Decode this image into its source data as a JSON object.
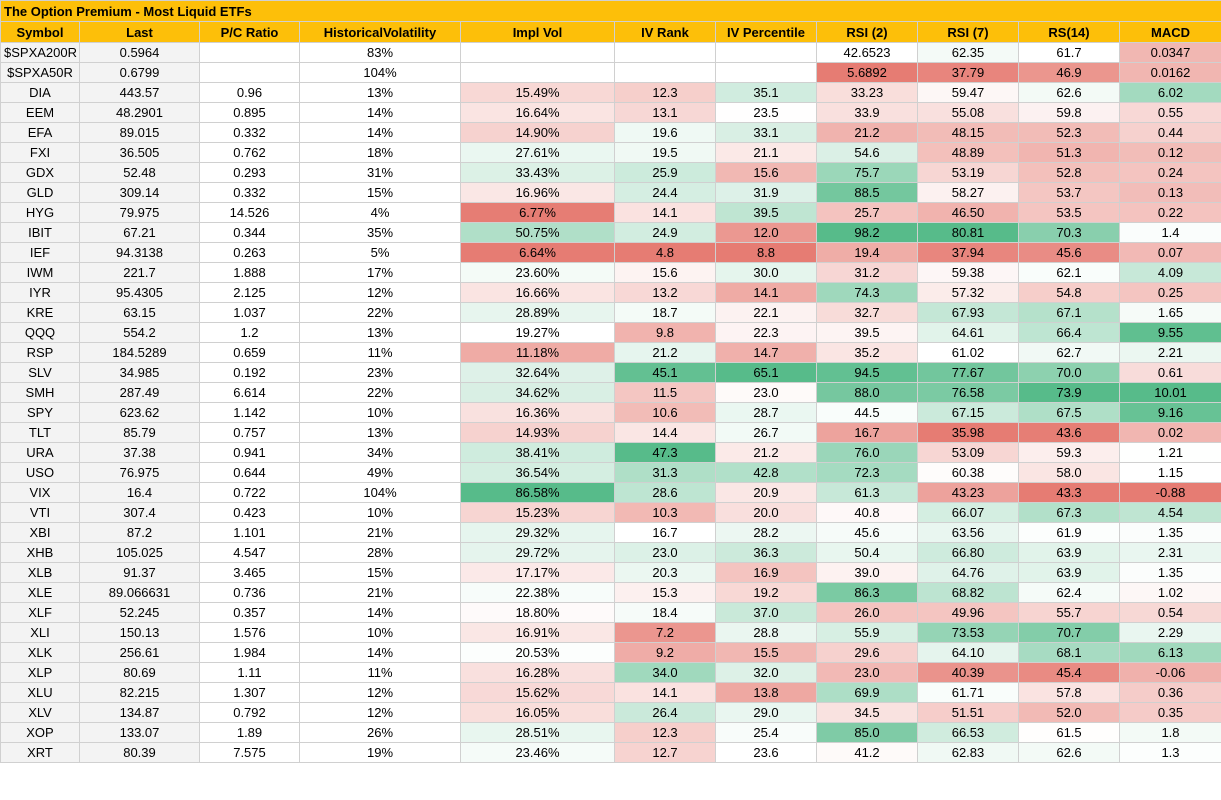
{
  "sheet": {
    "title": "The Option Premium - Most Liquid ETFs",
    "headers": [
      "Symbol",
      "Last",
      "P/C Ratio",
      "HistoricalVolatility",
      "Impl Vol",
      "IV Rank",
      "IV Percentile",
      "RSI (2)",
      "RSI (7)",
      "RS(14)",
      "MACD"
    ],
    "colors": {
      "header_bg": "#fdbf09",
      "red": "#e67c73",
      "green": "#57bb8a",
      "white": "#ffffff"
    },
    "rows": [
      [
        "$SPXA200R",
        "0.5964",
        "",
        "83%",
        "",
        "",
        "",
        "42.6523",
        "62.35",
        "61.7",
        "0.0347"
      ],
      [
        "$SPXA50R",
        "0.6799",
        "",
        "104%",
        "",
        "",
        "",
        "5.6892",
        "37.79",
        "46.9",
        "0.0162"
      ],
      [
        "DIA",
        "443.57",
        "0.96",
        "13%",
        "15.49%",
        "12.3",
        "35.1",
        "33.23",
        "59.47",
        "62.6",
        "6.02"
      ],
      [
        "EEM",
        "48.2901",
        "0.895",
        "14%",
        "16.64%",
        "13.1",
        "23.5",
        "33.9",
        "55.08",
        "59.8",
        "0.55"
      ],
      [
        "EFA",
        "89.015",
        "0.332",
        "14%",
        "14.90%",
        "19.6",
        "33.1",
        "21.2",
        "48.15",
        "52.3",
        "0.44"
      ],
      [
        "FXI",
        "36.505",
        "0.762",
        "18%",
        "27.61%",
        "19.5",
        "21.1",
        "54.6",
        "48.89",
        "51.3",
        "0.12"
      ],
      [
        "GDX",
        "52.48",
        "0.293",
        "31%",
        "33.43%",
        "25.9",
        "15.6",
        "75.7",
        "53.19",
        "52.8",
        "0.24"
      ],
      [
        "GLD",
        "309.14",
        "0.332",
        "15%",
        "16.96%",
        "24.4",
        "31.9",
        "88.5",
        "58.27",
        "53.7",
        "0.13"
      ],
      [
        "HYG",
        "79.975",
        "14.526",
        "4%",
        "6.77%",
        "14.1",
        "39.5",
        "25.7",
        "46.50",
        "53.5",
        "0.22"
      ],
      [
        "IBIT",
        "67.21",
        "0.344",
        "35%",
        "50.75%",
        "24.9",
        "12.0",
        "98.2",
        "80.81",
        "70.3",
        "1.4"
      ],
      [
        "IEF",
        "94.3138",
        "0.263",
        "5%",
        "6.64%",
        "4.8",
        "8.8",
        "19.4",
        "37.94",
        "45.6",
        "0.07"
      ],
      [
        "IWM",
        "221.7",
        "1.888",
        "17%",
        "23.60%",
        "15.6",
        "30.0",
        "31.2",
        "59.38",
        "62.1",
        "4.09"
      ],
      [
        "IYR",
        "95.4305",
        "2.125",
        "12%",
        "16.66%",
        "13.2",
        "14.1",
        "74.3",
        "57.32",
        "54.8",
        "0.25"
      ],
      [
        "KRE",
        "63.15",
        "1.037",
        "22%",
        "28.89%",
        "18.7",
        "22.1",
        "32.7",
        "67.93",
        "67.1",
        "1.65"
      ],
      [
        "QQQ",
        "554.2",
        "1.2",
        "13%",
        "19.27%",
        "9.8",
        "22.3",
        "39.5",
        "64.61",
        "66.4",
        "9.55"
      ],
      [
        "RSP",
        "184.5289",
        "0.659",
        "11%",
        "11.18%",
        "21.2",
        "14.7",
        "35.2",
        "61.02",
        "62.7",
        "2.21"
      ],
      [
        "SLV",
        "34.985",
        "0.192",
        "23%",
        "32.64%",
        "45.1",
        "65.1",
        "94.5",
        "77.67",
        "70.0",
        "0.61"
      ],
      [
        "SMH",
        "287.49",
        "6.614",
        "22%",
        "34.62%",
        "11.5",
        "23.0",
        "88.0",
        "76.58",
        "73.9",
        "10.01"
      ],
      [
        "SPY",
        "623.62",
        "1.142",
        "10%",
        "16.36%",
        "10.6",
        "28.7",
        "44.5",
        "67.15",
        "67.5",
        "9.16"
      ],
      [
        "TLT",
        "85.79",
        "0.757",
        "13%",
        "14.93%",
        "14.4",
        "26.7",
        "16.7",
        "35.98",
        "43.6",
        "0.02"
      ],
      [
        "URA",
        "37.38",
        "0.941",
        "34%",
        "38.41%",
        "47.3",
        "21.2",
        "76.0",
        "53.09",
        "59.3",
        "1.21"
      ],
      [
        "USO",
        "76.975",
        "0.644",
        "49%",
        "36.54%",
        "31.3",
        "42.8",
        "72.3",
        "60.38",
        "58.0",
        "1.15"
      ],
      [
        "VIX",
        "16.4",
        "0.722",
        "104%",
        "86.58%",
        "28.6",
        "20.9",
        "61.3",
        "43.23",
        "43.3",
        "-0.88"
      ],
      [
        "VTI",
        "307.4",
        "0.423",
        "10%",
        "15.23%",
        "10.3",
        "20.0",
        "40.8",
        "66.07",
        "67.3",
        "4.54"
      ],
      [
        "XBI",
        "87.2",
        "1.101",
        "21%",
        "29.32%",
        "16.7",
        "28.2",
        "45.6",
        "63.56",
        "61.9",
        "1.35"
      ],
      [
        "XHB",
        "105.025",
        "4.547",
        "28%",
        "29.72%",
        "23.0",
        "36.3",
        "50.4",
        "66.80",
        "63.9",
        "2.31"
      ],
      [
        "XLB",
        "91.37",
        "3.465",
        "15%",
        "17.17%",
        "20.3",
        "16.9",
        "39.0",
        "64.76",
        "63.9",
        "1.35"
      ],
      [
        "XLE",
        "89.066631",
        "0.736",
        "21%",
        "22.38%",
        "15.3",
        "19.2",
        "86.3",
        "68.82",
        "62.4",
        "1.02"
      ],
      [
        "XLF",
        "52.245",
        "0.357",
        "14%",
        "18.80%",
        "18.4",
        "37.0",
        "26.0",
        "49.96",
        "55.7",
        "0.54"
      ],
      [
        "XLI",
        "150.13",
        "1.576",
        "10%",
        "16.91%",
        "7.2",
        "28.8",
        "55.9",
        "73.53",
        "70.7",
        "2.29"
      ],
      [
        "XLK",
        "256.61",
        "1.984",
        "14%",
        "20.53%",
        "9.2",
        "15.5",
        "29.6",
        "64.10",
        "68.1",
        "6.13"
      ],
      [
        "XLP",
        "80.69",
        "1.11",
        "11%",
        "16.28%",
        "34.0",
        "32.0",
        "23.0",
        "40.39",
        "45.4",
        "-0.06"
      ],
      [
        "XLU",
        "82.215",
        "1.307",
        "12%",
        "15.62%",
        "14.1",
        "13.8",
        "69.9",
        "61.71",
        "57.8",
        "0.36"
      ],
      [
        "XLV",
        "134.87",
        "0.792",
        "12%",
        "16.05%",
        "26.4",
        "29.0",
        "34.5",
        "51.51",
        "52.0",
        "0.35"
      ],
      [
        "XOP",
        "133.07",
        "1.89",
        "26%",
        "28.51%",
        "12.3",
        "25.4",
        "85.0",
        "66.53",
        "61.5",
        "1.8"
      ],
      [
        "XRT",
        "80.39",
        "7.575",
        "19%",
        "23.46%",
        "12.7",
        "23.6",
        "41.2",
        "62.83",
        "62.6",
        "1.3"
      ]
    ]
  }
}
